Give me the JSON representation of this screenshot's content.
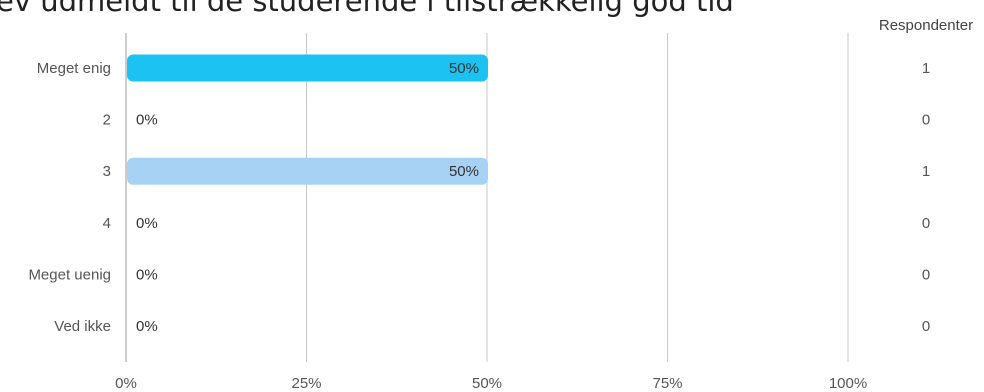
{
  "chart_data": {
    "type": "bar",
    "orientation": "horizontal",
    "title": "ev udmeldt til de studerende i tilstrækkelig god tid",
    "categories": [
      "Meget enig",
      "2",
      "3",
      "4",
      "Meget uenig",
      "Ved ikke"
    ],
    "values": [
      50,
      0,
      50,
      0,
      0,
      0
    ],
    "value_labels": [
      "50%",
      "0%",
      "50%",
      "0%",
      "0%",
      "0%"
    ],
    "respondents_header": "Respondenter",
    "respondents": [
      "1",
      "0",
      "1",
      "0",
      "0",
      "0"
    ],
    "xlim": [
      0,
      100
    ],
    "xticks": [
      0,
      25,
      50,
      75,
      100
    ],
    "xtick_labels": [
      "0%",
      "25%",
      "50%",
      "75%",
      "100%"
    ],
    "grid": true,
    "colors": [
      "#1cc3f2",
      "#1cc3f2",
      "#a8d2f3",
      "#a8d2f3",
      "#a8d2f3",
      "#a8d2f3"
    ]
  }
}
